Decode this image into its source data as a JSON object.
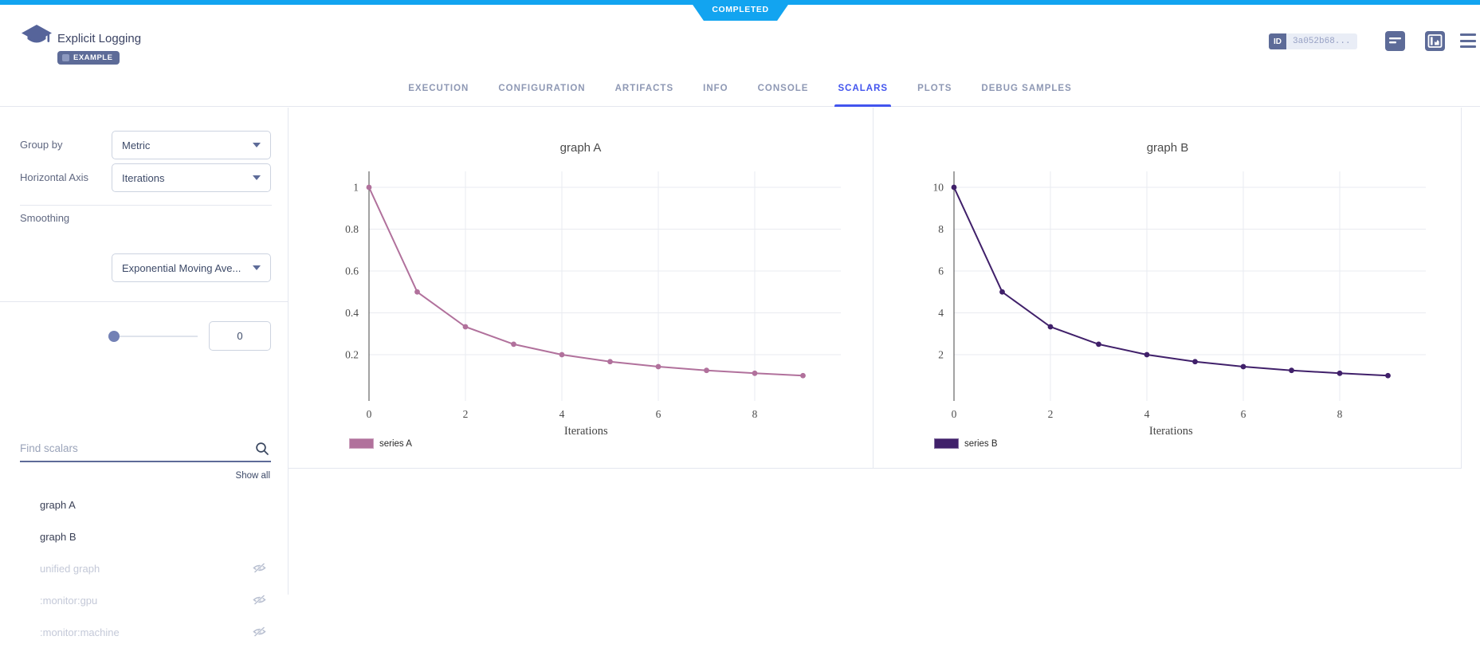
{
  "status_ribbon": {
    "label": "COMPLETED",
    "color": "#12a4f0"
  },
  "header": {
    "title": "Explicit Logging",
    "badge": "EXAMPLE",
    "id_label": "ID",
    "id_value": "3a052b68...",
    "icons": [
      "app-logo-icon",
      "details-icon",
      "side-panel-chart-icon",
      "hamburger-menu-icon",
      "auto-refresh-icon"
    ]
  },
  "tabs": {
    "items": [
      {
        "label": "EXECUTION",
        "active": false
      },
      {
        "label": "CONFIGURATION",
        "active": false
      },
      {
        "label": "ARTIFACTS",
        "active": false
      },
      {
        "label": "INFO",
        "active": false
      },
      {
        "label": "CONSOLE",
        "active": false
      },
      {
        "label": "SCALARS",
        "active": true
      },
      {
        "label": "PLOTS",
        "active": false
      },
      {
        "label": "DEBUG SAMPLES",
        "active": false
      }
    ],
    "active_color": "#4254ee"
  },
  "sidebar": {
    "group_by": {
      "label": "Group by",
      "value": "Metric"
    },
    "horizontal_axis": {
      "label": "Horizontal Axis",
      "value": "Iterations"
    },
    "smoothing": {
      "label": "Smoothing",
      "value": "0",
      "method": "Exponential Moving Ave..."
    },
    "search": {
      "placeholder": "Find scalars",
      "icon": "search-icon"
    },
    "show_all": "Show all",
    "scalars": [
      {
        "name": "graph A",
        "hidden": false
      },
      {
        "name": "graph B",
        "hidden": false
      },
      {
        "name": "unified graph",
        "hidden": true
      },
      {
        "name": ":monitor:gpu",
        "hidden": true
      },
      {
        "name": ":monitor:machine",
        "hidden": true
      }
    ],
    "hidden_icon": "eye-off-icon"
  },
  "chart_data": [
    {
      "type": "line",
      "title": "graph A",
      "xlabel": "Iterations",
      "x": [
        0,
        1,
        2,
        3,
        4,
        5,
        6,
        7,
        8,
        9
      ],
      "xticks": [
        0,
        2,
        4,
        6,
        8
      ],
      "yticks": [
        0.2,
        0.4,
        0.6,
        0.8,
        1
      ],
      "ytick_labels": [
        "0.2",
        "0.4",
        "0.6",
        "0.8",
        "1"
      ],
      "ylim": [
        -0.03,
        1.08
      ],
      "grid": true,
      "legend_position": "bottom-left",
      "series": [
        {
          "name": "series A",
          "color": "#b1719c",
          "values": [
            1,
            0.5,
            0.3333,
            0.25,
            0.2,
            0.1667,
            0.1429,
            0.125,
            0.1111,
            0.1
          ]
        }
      ]
    },
    {
      "type": "line",
      "title": "graph B",
      "xlabel": "Iterations",
      "x": [
        0,
        1,
        2,
        3,
        4,
        5,
        6,
        7,
        8,
        9
      ],
      "xticks": [
        0,
        2,
        4,
        6,
        8
      ],
      "yticks": [
        2,
        4,
        6,
        8,
        10
      ],
      "ytick_labels": [
        "2",
        "4",
        "6",
        "8",
        "10"
      ],
      "ylim": [
        -0.3,
        10.8
      ],
      "grid": true,
      "legend_position": "bottom-left",
      "series": [
        {
          "name": "series B",
          "color": "#40206a",
          "values": [
            10,
            5,
            3.333,
            2.5,
            2,
            1.667,
            1.429,
            1.25,
            1.111,
            1
          ]
        }
      ]
    }
  ],
  "colors": {
    "accent_blue": "#4254ee",
    "slate": "#5d6b98",
    "border": "#e4e7ef",
    "control_border": "#ccd3e0"
  }
}
